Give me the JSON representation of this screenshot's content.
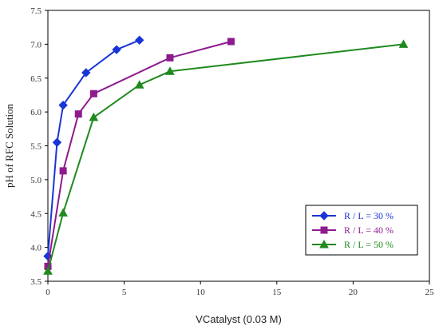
{
  "chart_data": {
    "type": "line",
    "xlabel": "VCatalyst (0.03 M)",
    "ylabel": "pH of RFC Solution",
    "xlim": [
      0,
      25
    ],
    "ylim": [
      3.5,
      7.5
    ],
    "x_ticks": [
      0,
      5,
      10,
      15,
      20,
      25
    ],
    "y_ticks": [
      3.5,
      4.0,
      4.5,
      5.0,
      5.5,
      6.0,
      6.5,
      7.0,
      7.5
    ],
    "x_tick_labels": [
      "0",
      "5",
      "10",
      "15",
      "20",
      "25"
    ],
    "y_tick_labels": [
      "3.5",
      "4.0",
      "4.5",
      "5.0",
      "5.5",
      "6.0",
      "6.5",
      "7.0",
      "7.5"
    ],
    "grid": false,
    "legend_position": "lower-right",
    "series": [
      {
        "name": "R / L = 30 %",
        "color": "#1a35d6",
        "marker": "diamond",
        "x": [
          0,
          0.6,
          1.0,
          2.5,
          4.5,
          6.0
        ],
        "y": [
          3.87,
          5.55,
          6.1,
          6.58,
          6.92,
          7.06
        ]
      },
      {
        "name": "R / L = 40 %",
        "color": "#8e1a8e",
        "marker": "square",
        "x": [
          0,
          1.0,
          2.0,
          3.0,
          8.0,
          12.0
        ],
        "y": [
          3.72,
          5.13,
          5.97,
          6.27,
          6.8,
          7.04
        ]
      },
      {
        "name": "R / L = 50 %",
        "color": "#1f8a1f",
        "marker": "triangle",
        "x": [
          0,
          1.0,
          3.0,
          6.0,
          8.0,
          23.3
        ],
        "y": [
          3.65,
          4.51,
          5.92,
          6.4,
          6.6,
          7.0
        ]
      }
    ]
  }
}
